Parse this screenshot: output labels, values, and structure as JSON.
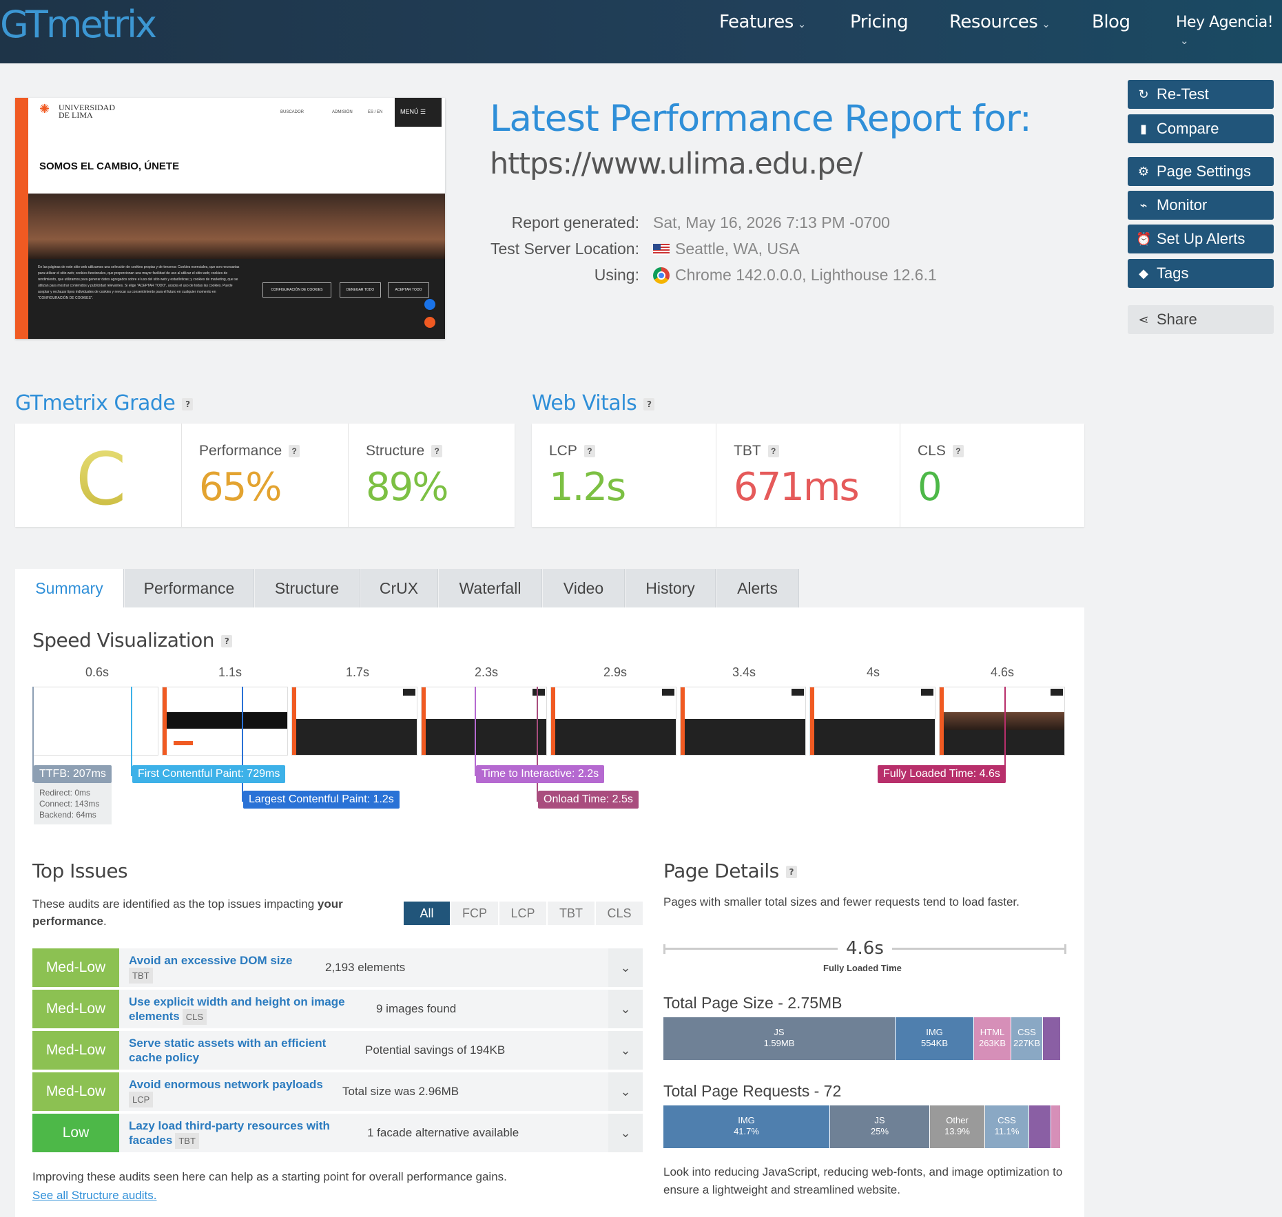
{
  "header": {
    "logo": "GTmetrix",
    "nav": [
      "Features",
      "Pricing",
      "Resources",
      "Blog",
      "Hey Agencia!"
    ]
  },
  "preview": {
    "brand_line1": "UNIVERSIDAD",
    "brand_line2": "DE LIMA",
    "nav_buscador": "BUSCADOR",
    "nav_admision": "ADMISIÓN",
    "nav_lang": "ES / EN",
    "menu": "MENÚ ☰",
    "headline": "SOMOS EL CAMBIO, ÚNETE",
    "cookie_text": "En las páginas de este sitio web utilizamos una selección de cookies propias y de terceros: Cookies esenciales, que son necesarias para utilizar el sitio web; cookies funcionales, que proporcionan una mayor facilidad de uso al utilizar el sitio web; cookies de rendimiento, que utilizamos para generar datos agregados sobre el uso del sitio web y estadísticas; y cookies de marketing, que se utilizan para mostrar contenidos y publicidad relevantes. Si elige \"ACEPTAR TODO\", acepta el uso de todas las cookies. Puede aceptar y rechazar tipos individuales de cookies y revocar su consentimiento para el futuro en cualquier momento en \"CONFIGURACIÓN DE COOKIES\".",
    "btn_config": "CONFIGURACIÓN DE COOKIES",
    "btn_deny": "DENEGAR TODO",
    "btn_accept": "ACEPTAR TODO"
  },
  "report": {
    "title": "Latest Performance Report for:",
    "url": "https://www.ulima.edu.pe/",
    "generated_label": "Report generated:",
    "generated_value": "Sat, May 16, 2026 7:13 PM -0700",
    "location_label": "Test Server Location:",
    "location_value": "Seattle, WA, USA",
    "using_label": "Using:",
    "using_value": "Chrome 142.0.0.0, Lighthouse 12.6.1"
  },
  "sidebar": {
    "retest": "Re-Test",
    "compare": "Compare",
    "page_settings": "Page Settings",
    "monitor": "Monitor",
    "alerts": "Set Up Alerts",
    "tags": "Tags",
    "share": "Share"
  },
  "grade": {
    "heading": "GTmetrix Grade",
    "letter": "C",
    "performance_label": "Performance",
    "performance_value": "65%",
    "structure_label": "Structure",
    "structure_value": "89%"
  },
  "vitals": {
    "heading": "Web Vitals",
    "lcp_label": "LCP",
    "lcp_value": "1.2s",
    "tbt_label": "TBT",
    "tbt_value": "671ms",
    "cls_label": "CLS",
    "cls_value": "0"
  },
  "tabs": [
    "Summary",
    "Performance",
    "Structure",
    "CrUX",
    "Waterfall",
    "Video",
    "History",
    "Alerts"
  ],
  "speed": {
    "heading": "Speed Visualization",
    "ticks": [
      "0.6s",
      "1.1s",
      "1.7s",
      "2.3s",
      "2.9s",
      "3.4s",
      "4s",
      "4.6s"
    ],
    "ttfb": "TTFB: 207ms",
    "ttfb_redirect": "Redirect: 0ms",
    "ttfb_connect": "Connect: 143ms",
    "ttfb_backend": "Backend: 64ms",
    "fcp": "First Contentful Paint: 729ms",
    "lcp": "Largest Contentful Paint: 1.2s",
    "tti": "Time to Interactive: 2.2s",
    "onload": "Onload Time: 2.5s",
    "fully": "Fully Loaded Time: 4.6s"
  },
  "issues": {
    "heading": "Top Issues",
    "desc_pre": "These audits are identified as the top issues impacting ",
    "desc_bold1": "your",
    "desc_bold2": "performance",
    "desc_post": ".",
    "filters": [
      "All",
      "FCP",
      "LCP",
      "TBT",
      "CLS"
    ],
    "rows": [
      {
        "severity": "Med-Low",
        "title": "Avoid an excessive DOM size",
        "title2": "",
        "tag": "TBT",
        "value": "2,193 elements"
      },
      {
        "severity": "Med-Low",
        "title": "Use explicit width and height on image",
        "title2": "elements",
        "tag": "CLS",
        "value": "9 images found"
      },
      {
        "severity": "Med-Low",
        "title": "Serve static assets with an efficient",
        "title2": "cache policy",
        "tag": "",
        "value": "Potential savings of 194KB"
      },
      {
        "severity": "Med-Low",
        "title": "Avoid enormous network payloads",
        "title2": "",
        "tag": "LCP",
        "value": "Total size was 2.96MB"
      },
      {
        "severity": "Low",
        "title": "Lazy load third-party resources with",
        "title2": "facades",
        "tag": "TBT",
        "value": "1 facade alternative available"
      }
    ],
    "footer": "Improving these audits seen here can help as a starting point for overall performance gains.",
    "link": "See all Structure audits."
  },
  "details": {
    "heading": "Page Details",
    "desc": "Pages with smaller total sizes and fewer requests tend to load faster.",
    "fully_value": "4.6s",
    "fully_label": "Fully Loaded Time",
    "size_heading": "Total Page Size - 2.75MB",
    "size_segments": [
      {
        "label": "JS",
        "value": "1.59MB",
        "color": "#6f8196"
      },
      {
        "label": "IMG",
        "value": "554KB",
        "color": "#4f7fae"
      },
      {
        "label": "HTML",
        "value": "263KB",
        "color": "#d68fb8"
      },
      {
        "label": "CSS",
        "value": "227KB",
        "color": "#8aa8c4"
      }
    ],
    "requests_heading": "Total Page Requests - 72",
    "request_segments": [
      {
        "label": "IMG",
        "value": "41.7%",
        "color": "#4f7fae"
      },
      {
        "label": "JS",
        "value": "25%",
        "color": "#6f8196"
      },
      {
        "label": "Other",
        "value": "13.9%",
        "color": "#9a9a9a"
      },
      {
        "label": "CSS",
        "value": "11.1%",
        "color": "#8aa8c4"
      }
    ],
    "footer": "Look into reducing JavaScript, reducing web-fonts, and image optimization to ensure a lightweight and streamlined website."
  },
  "colors": {
    "accent": "#2f8fd8",
    "nav_bg": "#1e3448",
    "grade_c": "#d6cc4a",
    "perf": "#e3a330",
    "structure": "#7cc043",
    "tbt": "#e55a5a",
    "medlow": "#8cc152",
    "low": "#4db848"
  }
}
